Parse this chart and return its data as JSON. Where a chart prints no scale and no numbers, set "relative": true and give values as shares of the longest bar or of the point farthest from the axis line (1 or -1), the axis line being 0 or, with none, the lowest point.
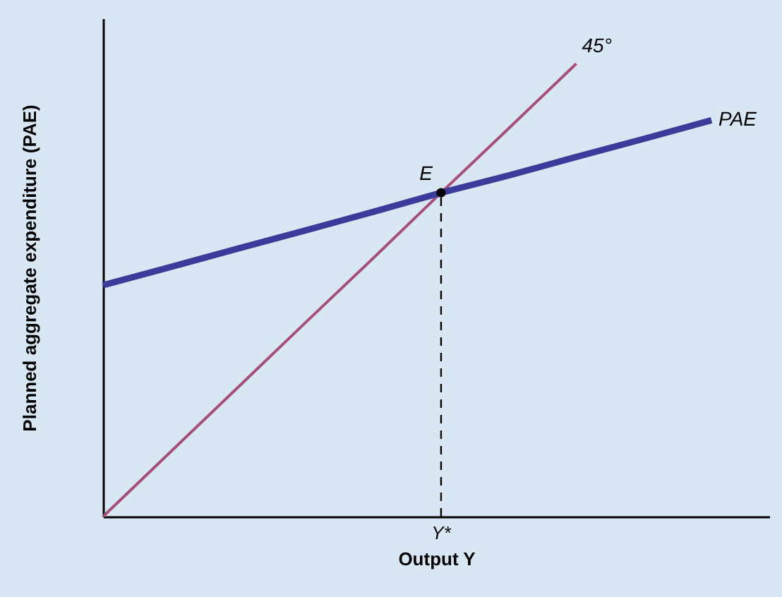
{
  "chart_data": {
    "type": "line",
    "relative": true,
    "xlabel": "Output Y",
    "ylabel": "Planned aggregate expenditure (PAE)",
    "grid": false,
    "categories": [
      null,
      null,
      null,
      null,
      null,
      null,
      null,
      null,
      null,
      null
    ],
    "series": [
      {
        "name": "45°",
        "color": "#a5507a",
        "values": [
          0,
          0.143,
          0.286,
          0.429,
          0.571,
          0.715,
          0.857,
          1,
          null,
          null
        ]
      },
      {
        "name": "PAE",
        "color": "#3a3c9c",
        "values": [
          0.511,
          0.551,
          0.592,
          0.632,
          0.673,
          0.715,
          0.753,
          0.794,
          0.834,
          0.875
        ]
      }
    ],
    "annotations": [
      {
        "text": "E",
        "y": 0.715
      },
      "Y*"
    ]
  }
}
